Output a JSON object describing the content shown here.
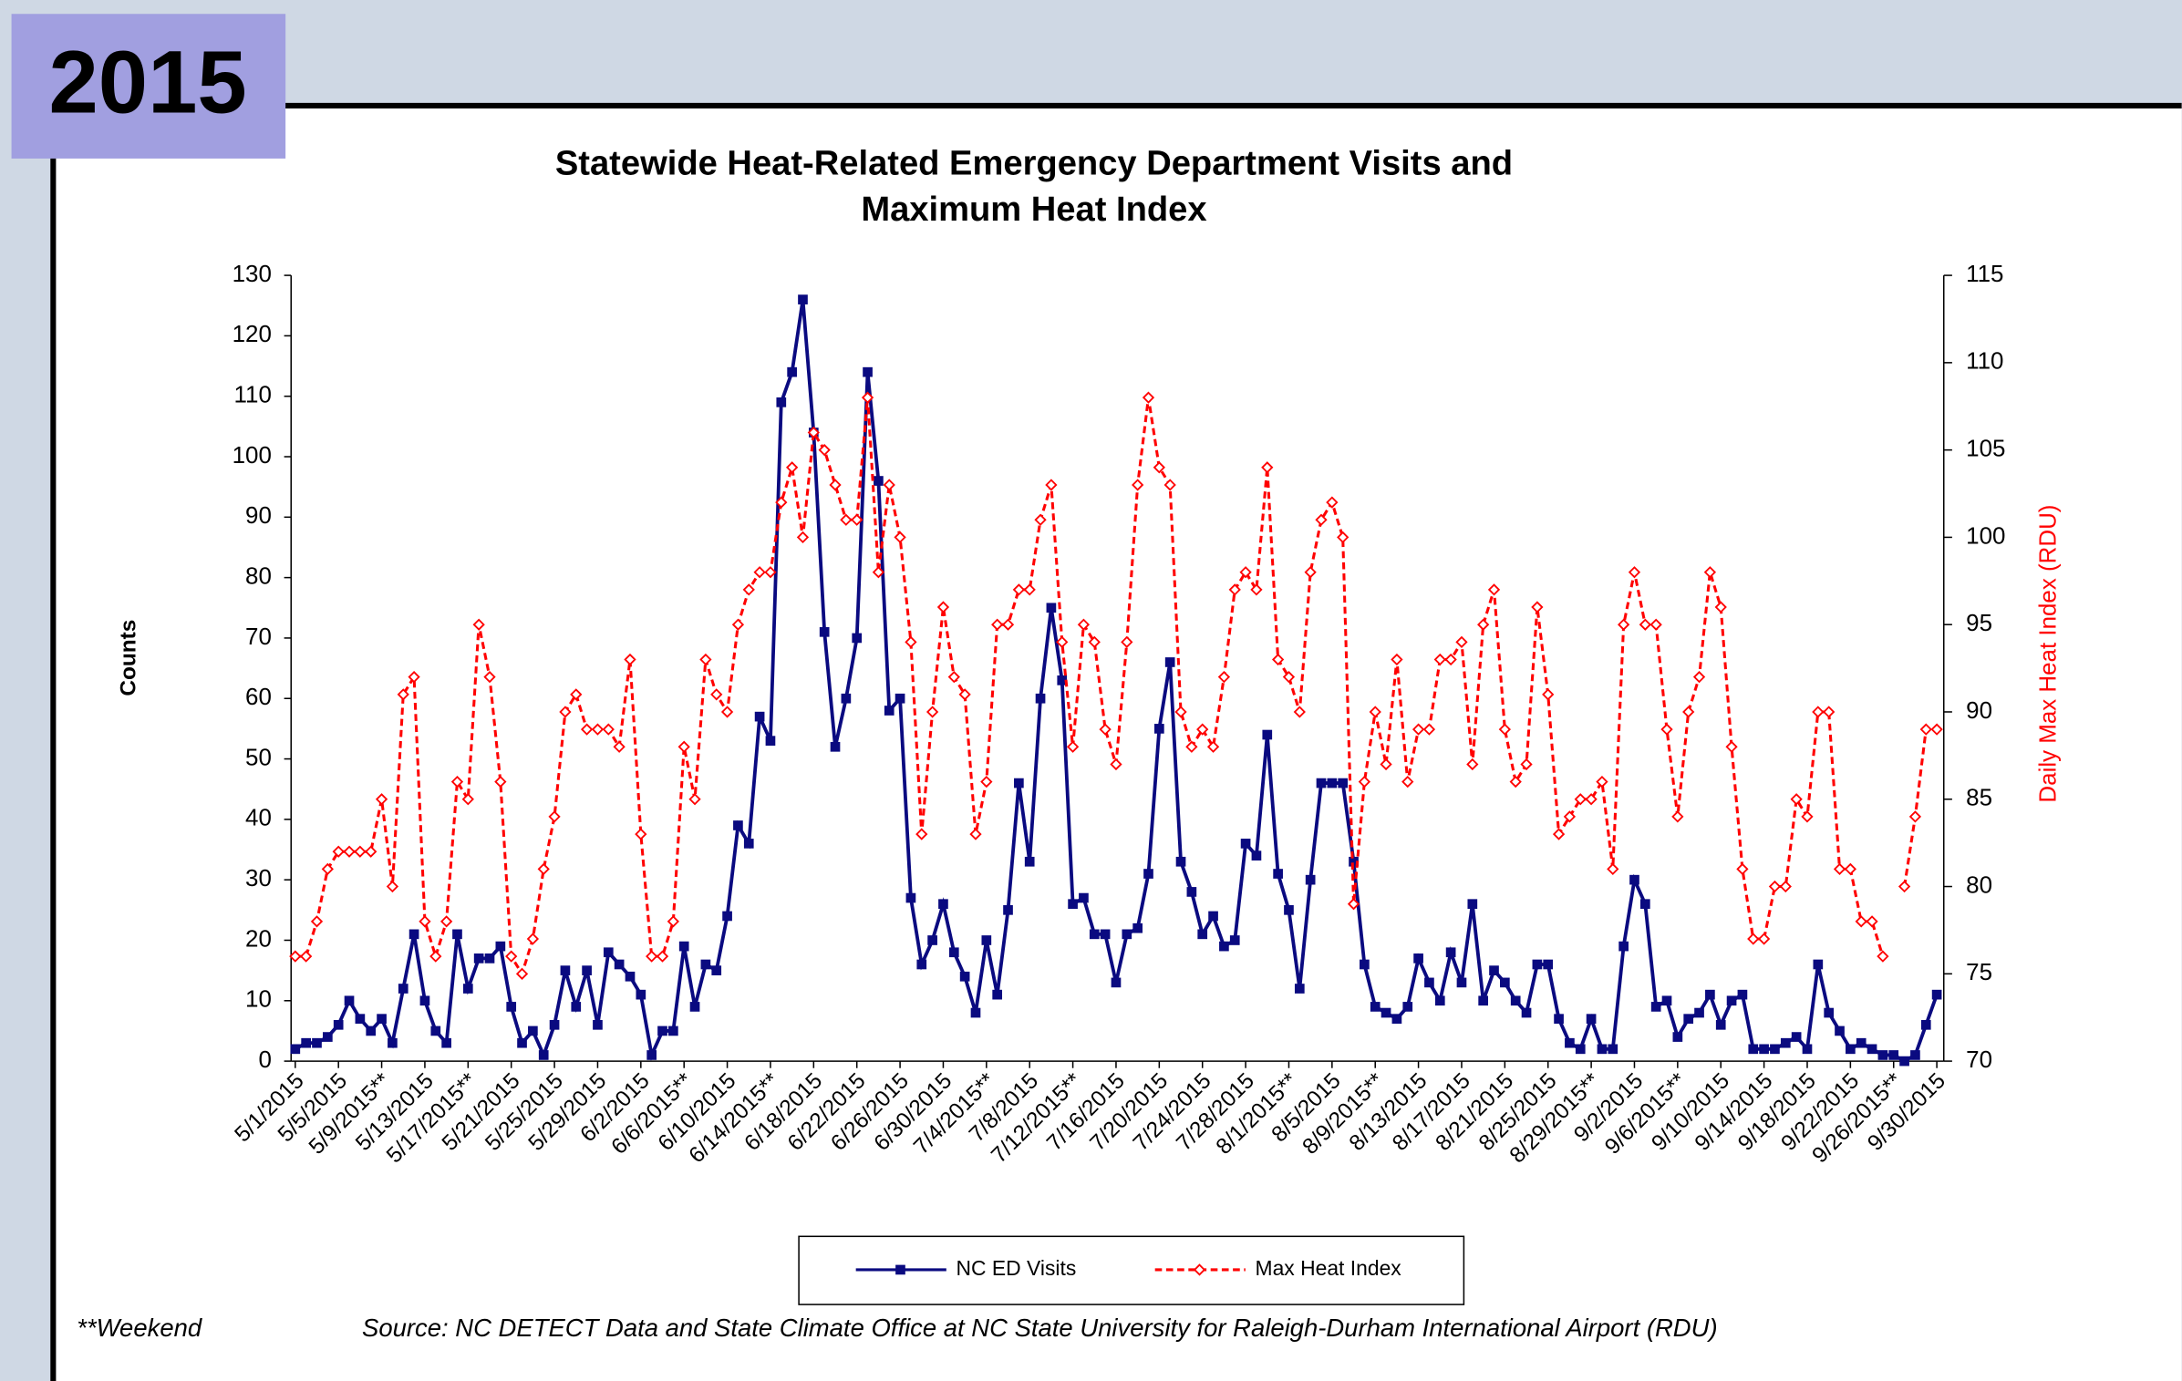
{
  "badge": "2015",
  "chart_data": {
    "type": "line",
    "title": [
      "Statewide Heat-Related Emergency Department Visits and",
      "Maximum Heat Index"
    ],
    "y_label": "Counts",
    "y2_label": "Daily  Max Heat Index  (RDU)",
    "categories": [
      "5/1/2015",
      null,
      null,
      null,
      "5/5/2015",
      null,
      null,
      null,
      "5/9/2015**",
      null,
      null,
      null,
      "5/13/2015",
      null,
      null,
      null,
      "5/17/2015**",
      null,
      null,
      null,
      "5/21/2015",
      null,
      null,
      null,
      "5/25/2015",
      null,
      null,
      null,
      "5/29/2015",
      null,
      null,
      null,
      "6/2/2015",
      null,
      null,
      null,
      "6/6/2015**",
      null,
      null,
      null,
      "6/10/2015",
      null,
      null,
      null,
      "6/14/2015**",
      null,
      null,
      null,
      "6/18/2015",
      null,
      null,
      null,
      "6/22/2015",
      null,
      null,
      null,
      "6/26/2015",
      null,
      null,
      null,
      "6/30/2015",
      null,
      null,
      null,
      "7/4/2015**",
      null,
      null,
      null,
      "7/8/2015",
      null,
      null,
      null,
      "7/12/2015**",
      null,
      null,
      null,
      "7/16/2015",
      null,
      null,
      null,
      "7/20/2015",
      null,
      null,
      null,
      "7/24/2015",
      null,
      null,
      null,
      "7/28/2015",
      null,
      null,
      null,
      "8/1/2015**",
      null,
      null,
      null,
      "8/5/2015",
      null,
      null,
      null,
      "8/9/2015**",
      null,
      null,
      null,
      "8/13/2015",
      null,
      null,
      null,
      "8/17/2015",
      null,
      null,
      null,
      "8/21/2015",
      null,
      null,
      null,
      "8/25/2015",
      null,
      null,
      null,
      "8/29/2015**",
      null,
      null,
      null,
      "9/2/2015",
      null,
      null,
      null,
      "9/6/2015**",
      null,
      null,
      null,
      "9/10/2015",
      null,
      null,
      null,
      "9/14/2015",
      null,
      null,
      null,
      "9/18/2015",
      null,
      null,
      null,
      "9/22/2015",
      null,
      null,
      null,
      "9/26/2015**",
      null,
      null,
      null,
      "9/30/2015"
    ],
    "series": [
      {
        "name": "NC ED Visits",
        "color": "#0a0a80",
        "axis": "y",
        "marker": "square",
        "values": [
          2,
          3,
          3,
          4,
          6,
          10,
          7,
          5,
          7,
          3,
          12,
          21,
          10,
          5,
          3,
          21,
          12,
          17,
          17,
          19,
          9,
          3,
          5,
          1,
          6,
          15,
          9,
          15,
          6,
          18,
          16,
          14,
          11,
          1,
          5,
          5,
          19,
          9,
          16,
          15,
          24,
          39,
          36,
          57,
          53,
          109,
          114,
          126,
          104,
          71,
          52,
          60,
          70,
          114,
          96,
          58,
          60,
          27,
          16,
          20,
          26,
          18,
          14,
          8,
          20,
          11,
          25,
          46,
          33,
          60,
          75,
          63,
          26,
          27,
          21,
          21,
          13,
          21,
          22,
          31,
          55,
          66,
          33,
          28,
          21,
          24,
          19,
          20,
          36,
          34,
          54,
          31,
          25,
          12,
          30,
          46,
          46,
          46,
          33,
          16,
          9,
          8,
          7,
          9,
          17,
          13,
          10,
          18,
          13,
          26,
          10,
          15,
          13,
          10,
          8,
          16,
          16,
          7,
          3,
          2,
          7,
          2,
          2,
          19,
          30,
          26,
          9,
          10,
          4,
          7,
          8,
          11,
          6,
          10,
          11,
          2,
          2,
          2,
          3,
          4,
          2,
          16,
          8,
          5,
          2,
          3,
          2,
          1,
          1,
          0,
          1,
          6,
          11
        ]
      },
      {
        "name": "Max Heat Index",
        "color": "#ff0000",
        "axis": "y2",
        "marker": "diamond",
        "dashed": true,
        "values": [
          76,
          76,
          78,
          81,
          82,
          82,
          82,
          82,
          85,
          80,
          91,
          92,
          78,
          76,
          78,
          86,
          85,
          95,
          92,
          86,
          76,
          75,
          77,
          81,
          84,
          90,
          91,
          89,
          89,
          89,
          88,
          93,
          83,
          76,
          76,
          78,
          88,
          85,
          93,
          91,
          90,
          95,
          97,
          98,
          98,
          102,
          104,
          100,
          106,
          105,
          103,
          101,
          101,
          108,
          98,
          103,
          100,
          94,
          83,
          90,
          96,
          92,
          91,
          83,
          86,
          95,
          95,
          97,
          97,
          101,
          103,
          94,
          88,
          95,
          94,
          89,
          87,
          94,
          103,
          108,
          104,
          103,
          90,
          88,
          89,
          88,
          92,
          97,
          98,
          97,
          104,
          93,
          92,
          90,
          98,
          101,
          102,
          100,
          79,
          86,
          90,
          87,
          93,
          86,
          89,
          89,
          93,
          93,
          94,
          87,
          95,
          97,
          89,
          86,
          87,
          96,
          91,
          83,
          84,
          85,
          85,
          86,
          81,
          95,
          98,
          95,
          95,
          89,
          84,
          90,
          92,
          98,
          96,
          88,
          81,
          77,
          77,
          80,
          80,
          85,
          84,
          90,
          90,
          81,
          81,
          78,
          78,
          76,
          null,
          80,
          84,
          89,
          89
        ]
      }
    ],
    "ylim": [
      0,
      130
    ],
    "yticks": [
      0,
      10,
      20,
      30,
      40,
      50,
      60,
      70,
      80,
      90,
      100,
      110,
      120,
      130
    ],
    "y2lim": [
      70,
      115
    ],
    "y2ticks": [
      70,
      75,
      80,
      85,
      90,
      95,
      100,
      105,
      110,
      115
    ],
    "legend": "bottom"
  },
  "footnotes": {
    "weekend": "**Weekend",
    "source": "Source: NC DETECT Data and State Climate Office at NC State University for Raleigh-Durham International Airport (RDU)"
  }
}
